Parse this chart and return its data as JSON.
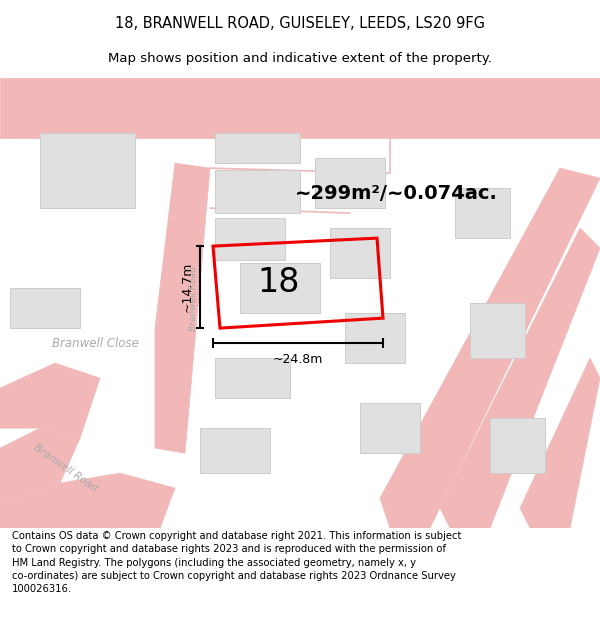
{
  "title": "18, BRANWELL ROAD, GUISELEY, LEEDS, LS20 9FG",
  "subtitle": "Map shows position and indicative extent of the property.",
  "footer": "Contains OS data © Crown copyright and database right 2021. This information is subject\nto Crown copyright and database rights 2023 and is reproduced with the permission of\nHM Land Registry. The polygons (including the associated geometry, namely x, y\nco-ordinates) are subject to Crown copyright and database rights 2023 Ordnance Survey\n100026316.",
  "area_label": "~299m²/~0.074ac.",
  "number_label": "18",
  "width_label": "~24.8m",
  "height_label": "~14.7m",
  "background_color": "#ffffff",
  "road_color": "#f2b8b8",
  "building_fill": "#e0e0e0",
  "building_edge": "#cccccc",
  "road_label_color": "#aaaaaa",
  "red_plot_color": "#ee0000",
  "title_fontsize": 10.5,
  "subtitle_fontsize": 9.5,
  "footer_fontsize": 7.2,
  "map_bg": "#f8f8f8"
}
